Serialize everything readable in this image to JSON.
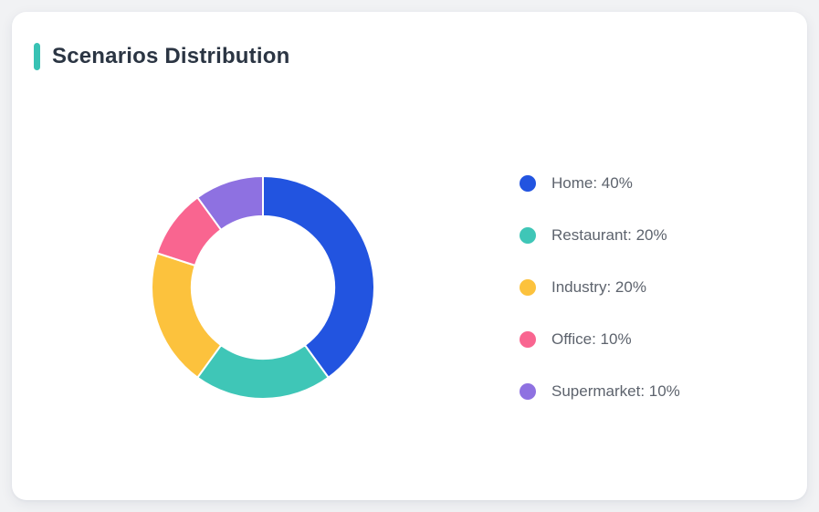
{
  "page": {
    "background_color": "#F1F2F4"
  },
  "card": {
    "title": "Scenarios Distribution",
    "accent_color": "#38C2B4",
    "background_color": "#FFFFFF"
  },
  "chart_data": {
    "type": "pie",
    "subtype": "donut",
    "title": "Scenarios Distribution",
    "categories": [
      "Home",
      "Restaurant",
      "Industry",
      "Office",
      "Supermarket"
    ],
    "values": [
      40,
      20,
      20,
      10,
      10
    ],
    "unit": "%",
    "colors": [
      "#2254E0",
      "#3FC6B7",
      "#FCC23D",
      "#F96590",
      "#8E71E1"
    ],
    "start_angle_deg": -90,
    "direction": "clockwise",
    "inner_radius_ratio": 0.64,
    "segment_gap_color": "#FFFFFF",
    "legend_position": "right",
    "legend": [
      {
        "label": "Home: 40%",
        "color": "#2254E0"
      },
      {
        "label": "Restaurant: 20%",
        "color": "#3FC6B7"
      },
      {
        "label": "Industry: 20%",
        "color": "#FCC23D"
      },
      {
        "label": "Office: 10%",
        "color": "#F96590"
      },
      {
        "label": "Supermarket: 10%",
        "color": "#8E71E1"
      }
    ]
  }
}
